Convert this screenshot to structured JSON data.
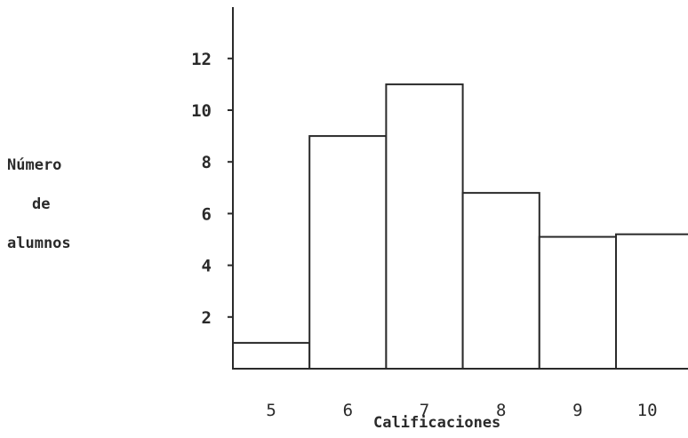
{
  "chart_data": {
    "type": "bar",
    "categories": [
      "5",
      "6",
      "7",
      "8",
      "9",
      "10"
    ],
    "values": [
      1,
      9,
      11,
      6.8,
      5.1,
      5.2
    ],
    "title": "",
    "xlabel": "Calificaciones",
    "ylabel": [
      "Número",
      "de",
      "alumnos"
    ],
    "yticks": [
      2,
      4,
      6,
      8,
      10,
      12
    ],
    "ylim": [
      0,
      14
    ],
    "grid": false,
    "bar_fill": "#ffffff",
    "line_color": "#2a2a2a"
  }
}
